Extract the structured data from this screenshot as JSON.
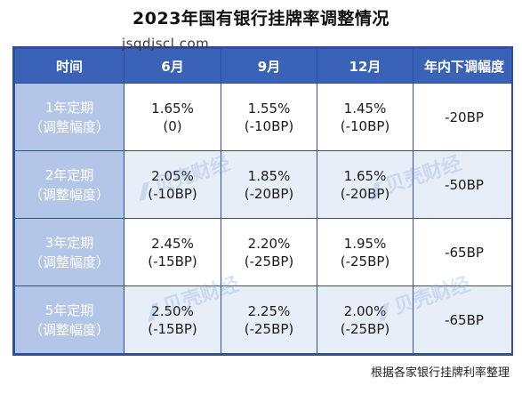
{
  "title": "2023年国有银行挂牌率调整情况",
  "watermark_url": "jsqdjscl.com",
  "watermark_brand": "贝壳财经",
  "headers": [
    "时间",
    "6月",
    "9月",
    "12月",
    "年内下调幅度"
  ],
  "rows": [
    {
      "label_line1": "1年定期",
      "label_line2": "（调整幅度）",
      "cells": [
        {
          "rate": "1.65%",
          "change": "(0)"
        },
        {
          "rate": "1.55%",
          "change": "(-10BP)"
        },
        {
          "rate": "1.45%",
          "change": "(-10BP)"
        }
      ],
      "total": "-20BP"
    },
    {
      "label_line1": "2年定期",
      "label_line2": "（调整幅度）",
      "cells": [
        {
          "rate": "2.05%",
          "change": "(-10BP)"
        },
        {
          "rate": "1.85%",
          "change": "(-20BP)"
        },
        {
          "rate": "1.65%",
          "change": "(-20BP)"
        }
      ],
      "total": "-50BP"
    },
    {
      "label_line1": "3年定期",
      "label_line2": "（调整幅度）",
      "cells": [
        {
          "rate": "2.45%",
          "change": "(-15BP)"
        },
        {
          "rate": "2.20%",
          "change": "(-25BP)"
        },
        {
          "rate": "1.95%",
          "change": "(-25BP)"
        }
      ],
      "total": "-65BP"
    },
    {
      "label_line1": "5年定期",
      "label_line2": "（调整幅度）",
      "cells": [
        {
          "rate": "2.50%",
          "change": "(-15BP)"
        },
        {
          "rate": "2.25%",
          "change": "(-25BP)"
        },
        {
          "rate": "2.00%",
          "change": "(-25BP)"
        }
      ],
      "total": "-65BP"
    }
  ],
  "source_note": "根据各家银行挂牌利率整理",
  "colors": {
    "header_bg": "#3a63b8",
    "rowhead_bg": "#b4c6e7",
    "border": "#2f4f9a",
    "alt_row_bg": "#e8eef8"
  }
}
